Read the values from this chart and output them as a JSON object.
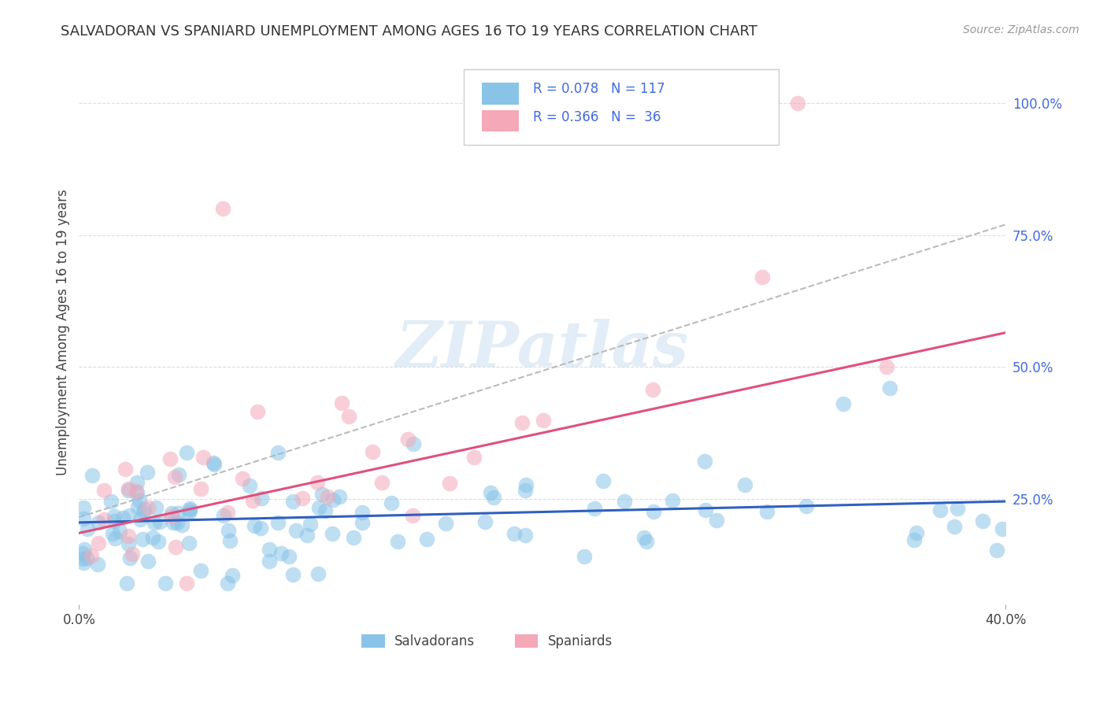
{
  "title": "SALVADORAN VS SPANIARD UNEMPLOYMENT AMONG AGES 16 TO 19 YEARS CORRELATION CHART",
  "source_text": "Source: ZipAtlas.com",
  "ylabel": "Unemployment Among Ages 16 to 19 years",
  "xlim": [
    0.0,
    0.4
  ],
  "ylim": [
    0.05,
    1.08
  ],
  "right_yticks": [
    0.25,
    0.5,
    0.75,
    1.0
  ],
  "right_yticklabels": [
    "25.0%",
    "50.0%",
    "75.0%",
    "100.0%"
  ],
  "salvadoran_R": 0.078,
  "salvadoran_N": 117,
  "spaniard_R": 0.366,
  "spaniard_N": 36,
  "blue_color": "#89C4E8",
  "pink_color": "#F4A8B8",
  "blue_line_color": "#3060C0",
  "pink_line_color": "#E05080",
  "gray_line_color": "#BBBBBB",
  "watermark": "ZIPatlas",
  "background_color": "#FFFFFF",
  "grid_color": "#DDDDDD",
  "legend_sal_text": "R = 0.078   N = 117",
  "legend_spa_text": "R = 0.366   N =  36",
  "sal_line_y0": 0.205,
  "sal_line_y1": 0.245,
  "spa_line_y0": 0.185,
  "spa_line_y1": 0.565,
  "gray_line_y0": 0.215,
  "gray_line_y1": 0.77
}
